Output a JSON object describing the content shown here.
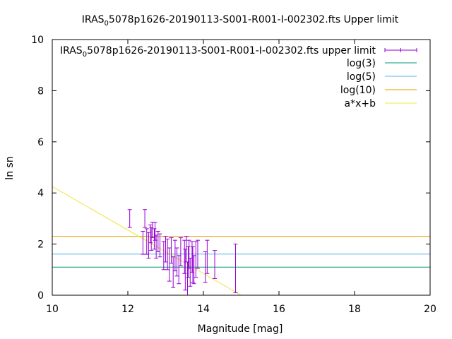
{
  "chart_data": {
    "type": "scatter",
    "title_main": "IRAS",
    "title_sub": "0",
    "title_rest": "5078p1626-20190113-S001-R001-I-002302.fts Upper limit",
    "xlabel": "Magnitude [mag]",
    "ylabel": "ln sn",
    "xlim": [
      10,
      20
    ],
    "ylim": [
      0,
      10
    ],
    "xticks": [
      "10",
      "12",
      "14",
      "16",
      "18",
      "20"
    ],
    "yticks": [
      "0",
      "2",
      "4",
      "6",
      "8",
      "10"
    ],
    "grid": false,
    "legend_position": "top-right",
    "legend": [
      {
        "pre": "IRAS",
        "sub": "0",
        "post": "5078p1626-20190113-S001-R001-I-002302.fts upper limit",
        "kind": "errorbar",
        "color": "#9400d3"
      },
      {
        "label": "log(3)",
        "kind": "line",
        "color": "#009e73"
      },
      {
        "label": "log(5)",
        "kind": "line",
        "color": "#56b4e9"
      },
      {
        "label": "log(10)",
        "kind": "line",
        "color": "#e69f00"
      },
      {
        "label": "a*x+b",
        "kind": "line",
        "color": "#f0e442"
      }
    ],
    "hlines": [
      {
        "name": "log(3)",
        "y": 1.0986,
        "color": "#009e73"
      },
      {
        "name": "log(5)",
        "y": 1.6094,
        "color": "#56b4e9"
      },
      {
        "name": "log(10)",
        "y": 2.3026,
        "color": "#e69f00"
      }
    ],
    "fit_line": {
      "name": "a*x+b",
      "x": [
        10,
        15
      ],
      "y": [
        4.25,
        0
      ],
      "color": "#f0e442"
    },
    "errorbar_points": {
      "color": "#9400d3",
      "points": [
        {
          "x": 12.05,
          "y": 3.0,
          "err": 0.35
        },
        {
          "x": 12.4,
          "y": 2.05,
          "err": 0.45
        },
        {
          "x": 12.45,
          "y": 3.0,
          "err": 0.35
        },
        {
          "x": 12.5,
          "y": 2.1,
          "err": 0.5
        },
        {
          "x": 12.55,
          "y": 1.95,
          "err": 0.5
        },
        {
          "x": 12.6,
          "y": 2.4,
          "err": 0.35
        },
        {
          "x": 12.62,
          "y": 2.2,
          "err": 0.45
        },
        {
          "x": 12.65,
          "y": 2.55,
          "err": 0.3
        },
        {
          "x": 12.7,
          "y": 2.2,
          "err": 0.4
        },
        {
          "x": 12.72,
          "y": 2.5,
          "err": 0.35
        },
        {
          "x": 12.75,
          "y": 1.9,
          "err": 0.45
        },
        {
          "x": 12.8,
          "y": 2.1,
          "err": 0.4
        },
        {
          "x": 12.85,
          "y": 1.95,
          "err": 0.45
        },
        {
          "x": 12.95,
          "y": 1.55,
          "err": 0.55
        },
        {
          "x": 13.0,
          "y": 1.8,
          "err": 0.5
        },
        {
          "x": 13.05,
          "y": 1.6,
          "err": 0.6
        },
        {
          "x": 13.1,
          "y": 1.2,
          "err": 0.65
        },
        {
          "x": 13.15,
          "y": 1.75,
          "err": 0.5
        },
        {
          "x": 13.2,
          "y": 0.9,
          "err": 0.6
        },
        {
          "x": 13.25,
          "y": 1.55,
          "err": 0.6
        },
        {
          "x": 13.3,
          "y": 1.3,
          "err": 0.55
        },
        {
          "x": 13.35,
          "y": 1.0,
          "err": 0.55
        },
        {
          "x": 13.4,
          "y": 1.7,
          "err": 0.55
        },
        {
          "x": 13.5,
          "y": 1.5,
          "err": 0.65
        },
        {
          "x": 13.52,
          "y": 1.0,
          "err": 0.8
        },
        {
          "x": 13.55,
          "y": 1.8,
          "err": 0.5
        },
        {
          "x": 13.58,
          "y": 0.6,
          "err": 0.7
        },
        {
          "x": 13.6,
          "y": 1.3,
          "err": 0.6
        },
        {
          "x": 13.62,
          "y": 1.6,
          "err": 0.55
        },
        {
          "x": 13.65,
          "y": 0.9,
          "err": 0.55
        },
        {
          "x": 13.7,
          "y": 1.5,
          "err": 0.6
        },
        {
          "x": 13.72,
          "y": 1.2,
          "err": 0.7
        },
        {
          "x": 13.75,
          "y": 1.0,
          "err": 0.55
        },
        {
          "x": 13.8,
          "y": 1.4,
          "err": 0.7
        },
        {
          "x": 13.85,
          "y": 1.6,
          "err": 0.55
        },
        {
          "x": 14.05,
          "y": 1.1,
          "err": 0.6
        },
        {
          "x": 14.1,
          "y": 1.5,
          "err": 0.65
        },
        {
          "x": 14.3,
          "y": 1.2,
          "err": 0.55
        },
        {
          "x": 14.85,
          "y": 1.05,
          "err": 0.95
        }
      ]
    }
  }
}
